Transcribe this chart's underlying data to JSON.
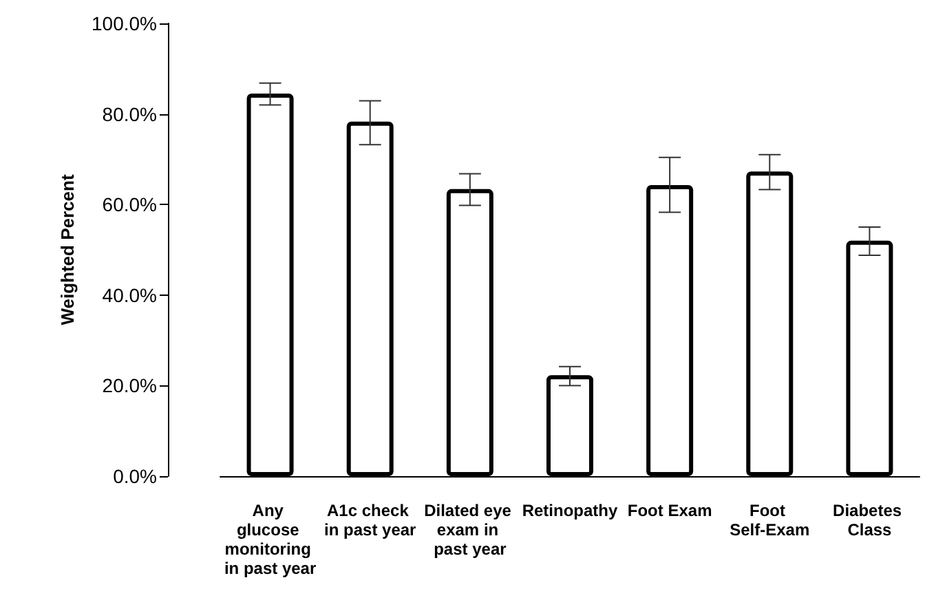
{
  "chart_data": {
    "type": "bar",
    "ylabel": "Weighted Percent",
    "categories": [
      "Any glucose monitoring in past year",
      "A1c check in past year",
      "Dilated eye exam in past year",
      "Retinopathy",
      "Foot Exam",
      "Foot Self-Exam",
      "Diabetes Class"
    ],
    "values": [
      84.5,
      78.3,
      63.4,
      22.3,
      64.3,
      67.3,
      52.0
    ],
    "errors": [
      [
        82.0,
        86.8
      ],
      [
        73.2,
        82.9
      ],
      [
        59.8,
        66.8
      ],
      [
        20.0,
        24.2
      ],
      [
        58.3,
        70.4
      ],
      [
        63.3,
        71.0
      ],
      [
        48.8,
        55.0
      ]
    ],
    "color": "#ffffff",
    "ylim": [
      0,
      100
    ],
    "yticks": [
      {
        "value": 0,
        "label": "0.0%"
      },
      {
        "value": 20,
        "label": "20.0%"
      },
      {
        "value": 40,
        "label": "40.0%"
      },
      {
        "value": 60,
        "label": "60.0%"
      },
      {
        "value": 80,
        "label": "80.0%"
      },
      {
        "value": 100,
        "label": "100.0%"
      }
    ],
    "grid": false
  }
}
